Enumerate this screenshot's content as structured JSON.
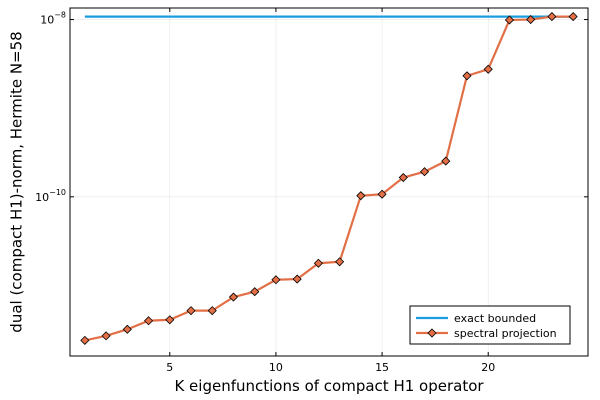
{
  "chart_data": {
    "type": "line",
    "title": "",
    "xlabel": "K eigenfunctions of compact H1 operator",
    "ylabel": "dual (compact H1)-norm, Hermite N=58",
    "xlim": [
      0.3,
      24.7
    ],
    "ylim": [
      1.6e-12,
      1.35e-08
    ],
    "yscale": "log",
    "grid": true,
    "legend_position": "bottom-right",
    "x_ticks": [
      5,
      10,
      15,
      20
    ],
    "x_tick_labels": [
      "5",
      "10",
      "15",
      "20"
    ],
    "y_ticks": [
      1e-10,
      1e-08
    ],
    "y_tick_labels": [
      {
        "base": "10",
        "exp": "−10"
      },
      {
        "base": "10",
        "exp": "−8"
      }
    ],
    "series": [
      {
        "name": "exact bounded",
        "color": "#1a9de0",
        "marker": "none",
        "x": [
          1,
          24
        ],
        "y": [
          1.08e-08,
          1.08e-08
        ]
      },
      {
        "name": "spectral projection",
        "color": "#e26f46",
        "marker": "diamond",
        "x": [
          1,
          2,
          3,
          4,
          5,
          6,
          7,
          8,
          9,
          10,
          11,
          12,
          13,
          14,
          15,
          16,
          17,
          18,
          19,
          20,
          21,
          22,
          23,
          24
        ],
        "y": [
          2.4e-12,
          2.7e-12,
          3.2e-12,
          4e-12,
          4.1e-12,
          5.2e-12,
          5.2e-12,
          7.4e-12,
          8.5e-12,
          1.16e-11,
          1.18e-11,
          1.78e-11,
          1.85e-11,
          1.03e-10,
          1.07e-10,
          1.65e-10,
          1.92e-10,
          2.53e-10,
          2.32e-09,
          2.75e-09,
          9.9e-09,
          1e-08,
          1.08e-08,
          1.08e-08
        ]
      }
    ]
  }
}
